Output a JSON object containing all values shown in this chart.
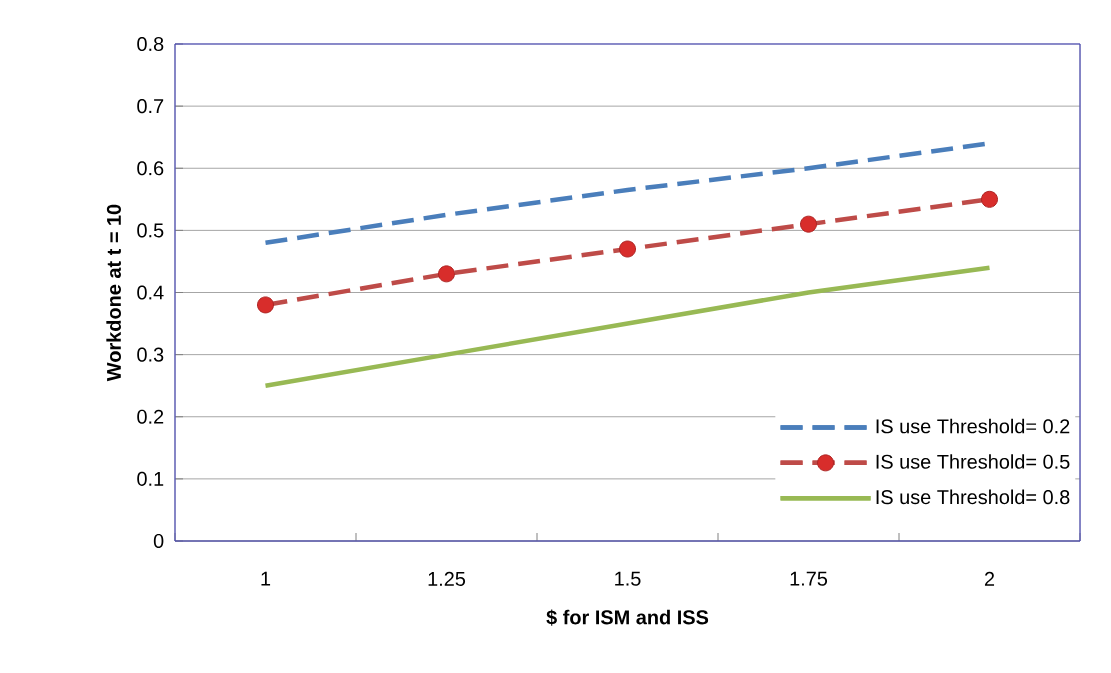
{
  "chart_data": {
    "type": "line",
    "xlabel": "$ for ISM and ISS",
    "ylabel": "Workdone at t = 10",
    "categories": [
      "1",
      "1.25",
      "1.5",
      "1.75",
      "2"
    ],
    "series": [
      {
        "name": "IS use Threshold= 0.2",
        "color": "#4a7ebb",
        "line_style": "dashed",
        "marker": "none",
        "values": [
          0.48,
          0.525,
          0.565,
          0.6,
          0.64
        ]
      },
      {
        "name": "IS use Threshold= 0.5",
        "color": "#be4b48",
        "line_style": "dashed",
        "marker": "circle",
        "values": [
          0.38,
          0.43,
          0.47,
          0.51,
          0.55
        ]
      },
      {
        "name": "IS use Threshold= 0.8",
        "color": "#98b954",
        "line_style": "solid",
        "marker": "none",
        "values": [
          0.25,
          0.3,
          0.35,
          0.4,
          0.44
        ]
      }
    ],
    "ylim": [
      0,
      0.8
    ],
    "yticks": [
      0,
      0.1,
      0.2,
      0.3,
      0.4,
      0.5,
      0.6,
      0.7,
      0.8
    ],
    "grid": "y",
    "legend": "bottom right"
  }
}
